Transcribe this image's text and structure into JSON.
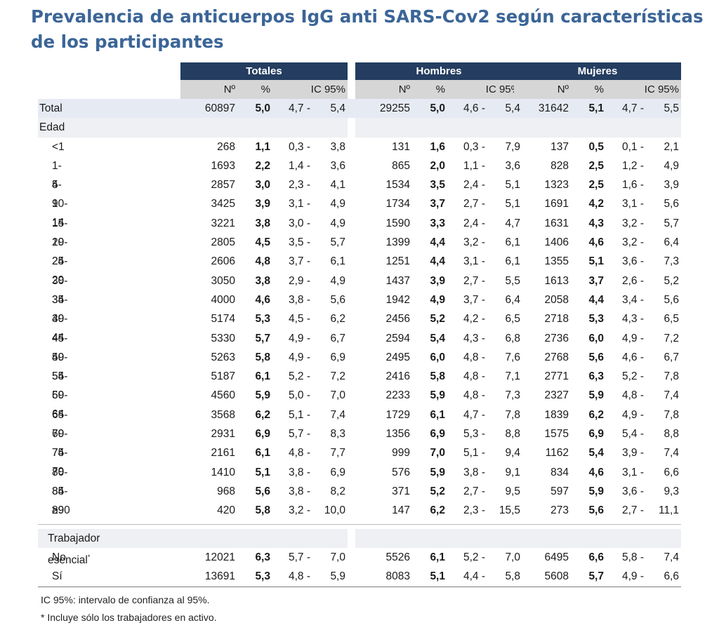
{
  "title": "Prevalencia de anticuerpos IgG anti SARS-Cov2 según características de los participantes",
  "groups": [
    "Totales",
    "Hombres",
    "Mujeres"
  ],
  "subheaders": [
    "Nº",
    "%",
    "IC 95%"
  ],
  "total_row": {
    "label": "Total",
    "cells": [
      [
        "60897",
        "5,0",
        "4,7 -",
        "5,4"
      ],
      [
        "29255",
        "5,0",
        "4,6 -",
        "5,4"
      ],
      [
        "31642",
        "5,1",
        "4,7 -",
        "5,5"
      ]
    ]
  },
  "section_edad": "Edad",
  "age_rows": [
    {
      "label": "<1",
      "cells": [
        [
          "268",
          "1,1",
          "0,3 -",
          "3,8"
        ],
        [
          "131",
          "1,6",
          "0,3 -",
          "7,9"
        ],
        [
          "137",
          "0,5",
          "0,1 -",
          "2,1"
        ]
      ]
    },
    {
      "label": "1-4",
      "cells": [
        [
          "1693",
          "2,2",
          "1,4 -",
          "3,6"
        ],
        [
          "865",
          "2,0",
          "1,1 -",
          "3,6"
        ],
        [
          "828",
          "2,5",
          "1,2 -",
          "4,9"
        ]
      ]
    },
    {
      "label": "5-9",
      "cells": [
        [
          "2857",
          "3,0",
          "2,3 -",
          "4,1"
        ],
        [
          "1534",
          "3,5",
          "2,4 -",
          "5,1"
        ],
        [
          "1323",
          "2,5",
          "1,6 -",
          "3,9"
        ]
      ]
    },
    {
      "label": "10-14",
      "cells": [
        [
          "3425",
          "3,9",
          "3,1 -",
          "4,9"
        ],
        [
          "1734",
          "3,7",
          "2,7 -",
          "5,1"
        ],
        [
          "1691",
          "4,2",
          "3,1 -",
          "5,6"
        ]
      ]
    },
    {
      "label": "15-19",
      "cells": [
        [
          "3221",
          "3,8",
          "3,0 -",
          "4,9"
        ],
        [
          "1590",
          "3,3",
          "2,4 -",
          "4,7"
        ],
        [
          "1631",
          "4,3",
          "3,2 -",
          "5,7"
        ]
      ]
    },
    {
      "label": "20-24",
      "cells": [
        [
          "2805",
          "4,5",
          "3,5 -",
          "5,7"
        ],
        [
          "1399",
          "4,4",
          "3,2 -",
          "6,1"
        ],
        [
          "1406",
          "4,6",
          "3,2 -",
          "6,4"
        ]
      ]
    },
    {
      "label": "25-29",
      "cells": [
        [
          "2606",
          "4,8",
          "3,7 -",
          "6,1"
        ],
        [
          "1251",
          "4,4",
          "3,1 -",
          "6,1"
        ],
        [
          "1355",
          "5,1",
          "3,6 -",
          "7,3"
        ]
      ]
    },
    {
      "label": "30-34",
      "cells": [
        [
          "3050",
          "3,8",
          "2,9 -",
          "4,9"
        ],
        [
          "1437",
          "3,9",
          "2,7 -",
          "5,5"
        ],
        [
          "1613",
          "3,7",
          "2,6 -",
          "5,2"
        ]
      ]
    },
    {
      "label": "35-39",
      "cells": [
        [
          "4000",
          "4,6",
          "3,8 -",
          "5,6"
        ],
        [
          "1942",
          "4,9",
          "3,7 -",
          "6,4"
        ],
        [
          "2058",
          "4,4",
          "3,4 -",
          "5,6"
        ]
      ]
    },
    {
      "label": "40-44",
      "cells": [
        [
          "5174",
          "5,3",
          "4,5 -",
          "6,2"
        ],
        [
          "2456",
          "5,2",
          "4,2 -",
          "6,5"
        ],
        [
          "2718",
          "5,3",
          "4,3 -",
          "6,5"
        ]
      ]
    },
    {
      "label": "45-49",
      "cells": [
        [
          "5330",
          "5,7",
          "4,9 -",
          "6,7"
        ],
        [
          "2594",
          "5,4",
          "4,3 -",
          "6,8"
        ],
        [
          "2736",
          "6,0",
          "4,9 -",
          "7,2"
        ]
      ]
    },
    {
      "label": "50-54",
      "cells": [
        [
          "5263",
          "5,8",
          "4,9 -",
          "6,9"
        ],
        [
          "2495",
          "6,0",
          "4,8 -",
          "7,6"
        ],
        [
          "2768",
          "5,6",
          "4,6 -",
          "6,7"
        ]
      ]
    },
    {
      "label": "55-59",
      "cells": [
        [
          "5187",
          "6,1",
          "5,2 -",
          "7,2"
        ],
        [
          "2416",
          "5,8",
          "4,8 -",
          "7,1"
        ],
        [
          "2771",
          "6,3",
          "5,2 -",
          "7,8"
        ]
      ]
    },
    {
      "label": "60-64",
      "cells": [
        [
          "4560",
          "5,9",
          "5,0 -",
          "7,0"
        ],
        [
          "2233",
          "5,9",
          "4,8 -",
          "7,3"
        ],
        [
          "2327",
          "5,9",
          "4,8 -",
          "7,4"
        ]
      ]
    },
    {
      "label": "65-69",
      "cells": [
        [
          "3568",
          "6,2",
          "5,1 -",
          "7,4"
        ],
        [
          "1729",
          "6,1",
          "4,7 -",
          "7,8"
        ],
        [
          "1839",
          "6,2",
          "4,9 -",
          "7,8"
        ]
      ]
    },
    {
      "label": "70-74",
      "cells": [
        [
          "2931",
          "6,9",
          "5,7 -",
          "8,3"
        ],
        [
          "1356",
          "6,9",
          "5,3 -",
          "8,8"
        ],
        [
          "1575",
          "6,9",
          "5,4 -",
          "8,8"
        ]
      ]
    },
    {
      "label": "75-79",
      "cells": [
        [
          "2161",
          "6,1",
          "4,8 -",
          "7,7"
        ],
        [
          "999",
          "7,0",
          "5,1 -",
          "9,4"
        ],
        [
          "1162",
          "5,4",
          "3,9 -",
          "7,4"
        ]
      ]
    },
    {
      "label": "80-84",
      "cells": [
        [
          "1410",
          "5,1",
          "3,8 -",
          "6,9"
        ],
        [
          "576",
          "5,9",
          "3,8 -",
          "9,1"
        ],
        [
          "834",
          "4,6",
          "3,1 -",
          "6,6"
        ]
      ]
    },
    {
      "label": "85-89",
      "cells": [
        [
          "968",
          "5,6",
          "3,8 -",
          "8,2"
        ],
        [
          "371",
          "5,2",
          "2,7 -",
          "9,5"
        ],
        [
          "597",
          "5,9",
          "3,6 -",
          "9,3"
        ]
      ]
    },
    {
      "label": "≥90",
      "cells": [
        [
          "420",
          "5,8",
          "3,2 -",
          "10,0"
        ],
        [
          "147",
          "6,2",
          "2,3 -",
          "15,5"
        ],
        [
          "273",
          "5,6",
          "2,7 -",
          "11,1"
        ]
      ]
    }
  ],
  "section_trabajador": "Trabajador esencial",
  "section_trabajador_mark": "*",
  "worker_rows": [
    {
      "label": "No",
      "cells": [
        [
          "12021",
          "6,3",
          "5,7 -",
          "7,0"
        ],
        [
          "5526",
          "6,1",
          "5,2 -",
          "7,0"
        ],
        [
          "6495",
          "6,6",
          "5,8 -",
          "7,4"
        ]
      ]
    },
    {
      "label": "Sí",
      "cells": [
        [
          "13691",
          "5,3",
          "4,8 -",
          "5,9"
        ],
        [
          "8083",
          "5,1",
          "4,4 -",
          "5,8"
        ],
        [
          "5608",
          "5,7",
          "4,9 -",
          "6,6"
        ]
      ]
    }
  ],
  "footnotes": [
    "IC 95%: intervalo de confianza al 95%.",
    "* Incluye sólo los trabajadores en activo."
  ],
  "colors": {
    "title": "#3b6597",
    "header_bg": "#243d60",
    "subheader_bg": "#d6d6d6",
    "band": "#e6ebf3"
  }
}
